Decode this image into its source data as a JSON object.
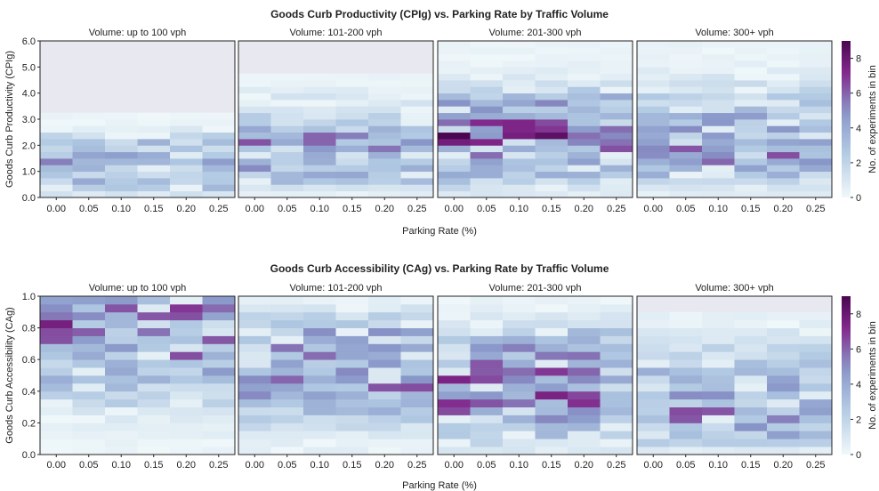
{
  "chart_data": [
    {
      "type": "heatmap",
      "title": "Goods Curb Productivity (CPIg) vs. Parking Rate by Traffic Volume",
      "xlabel": "Parking Rate (%)",
      "ylabel": "Goods Curb Productivity (CPIg)",
      "colorbar_label": "No. of experiments in bin",
      "colorbar_ticks": [
        "0",
        "2",
        "4",
        "6",
        "8"
      ],
      "colorbar_range": [
        0,
        9
      ],
      "x_ticks": [
        "0.00",
        "0.05",
        "0.10",
        "0.15",
        "0.20",
        "0.25"
      ],
      "y_ticks": [
        "0.0",
        "1.0",
        "2.0",
        "3.0",
        "4.0",
        "5.0",
        "6.0"
      ],
      "ylim": [
        0,
        6
      ],
      "grid": false,
      "panels": [
        {
          "title": "Volume: up to 100 vph",
          "bins": [
            [
              0.2,
              1
            ],
            [
              0.4,
              1
            ],
            [
              0.6,
              3
            ],
            [
              0.8,
              2
            ],
            [
              1.0,
              3
            ],
            [
              1.2,
              2
            ],
            [
              1.4,
              4
            ],
            [
              1.6,
              2
            ],
            [
              1.8,
              1
            ],
            [
              2.0,
              3
            ],
            [
              2.2,
              0.5
            ],
            [
              2.4,
              0.5
            ],
            [
              2.6,
              0.5
            ],
            [
              2.8,
              0.3
            ],
            [
              3.0,
              0.3
            ]
          ],
          "top": 3.3
        },
        {
          "title": "Volume: 101-200 vph",
          "bins": [
            [
              0.2,
              0.5
            ],
            [
              0.6,
              1
            ],
            [
              1.0,
              4
            ],
            [
              1.4,
              3
            ],
            [
              1.8,
              5
            ],
            [
              2.2,
              5
            ],
            [
              2.6,
              3
            ],
            [
              3.0,
              2
            ],
            [
              3.4,
              1
            ],
            [
              3.8,
              1
            ],
            [
              4.2,
              0.3
            ],
            [
              4.6,
              0.2
            ]
          ],
          "top": 4.8
        },
        {
          "title": "Volume: 201-300 vph",
          "bins": [
            [
              0.3,
              1
            ],
            [
              0.8,
              3
            ],
            [
              1.2,
              4
            ],
            [
              1.6,
              5
            ],
            [
              2.0,
              6
            ],
            [
              2.4,
              7
            ],
            [
              2.8,
              6
            ],
            [
              3.2,
              5
            ],
            [
              3.6,
              4
            ],
            [
              4.0,
              2
            ],
            [
              4.5,
              1
            ],
            [
              5.0,
              0.5
            ],
            [
              5.5,
              0.3
            ]
          ],
          "top": 6.0
        },
        {
          "title": "Volume: 300+ vph",
          "bins": [
            [
              0.5,
              1
            ],
            [
              1.0,
              3
            ],
            [
              1.5,
              6
            ],
            [
              2.0,
              5
            ],
            [
              2.5,
              4
            ],
            [
              3.0,
              4
            ],
            [
              3.5,
              3
            ],
            [
              4.0,
              2
            ],
            [
              4.5,
              1
            ],
            [
              5.0,
              0.5
            ],
            [
              5.5,
              0.3
            ]
          ],
          "top": 6.0
        }
      ]
    },
    {
      "type": "heatmap",
      "title": "Goods Curb Accessibility (CAg) vs. Parking Rate by Traffic Volume",
      "xlabel": "Parking Rate (%)",
      "ylabel": "Goods Curb Accessibility (CAg)",
      "colorbar_label": "No. of experiments in bin",
      "colorbar_ticks": [
        "0",
        "2",
        "4",
        "6",
        "8"
      ],
      "colorbar_range": [
        0,
        9
      ],
      "x_ticks": [
        "0.00",
        "0.05",
        "0.10",
        "0.15",
        "0.20",
        "0.25"
      ],
      "y_ticks": [
        "0.0",
        "0.2",
        "0.4",
        "0.6",
        "0.8",
        "1.0"
      ],
      "ylim": [
        0,
        1
      ],
      "grid": false,
      "panels": [
        {
          "title": "Volume: up to 100 vph",
          "bins": [
            [
              0.05,
              0.3
            ],
            [
              0.15,
              0.5
            ],
            [
              0.25,
              0.8
            ],
            [
              0.35,
              2
            ],
            [
              0.45,
              3
            ],
            [
              0.55,
              4
            ],
            [
              0.65,
              5
            ],
            [
              0.75,
              5
            ],
            [
              0.85,
              6
            ],
            [
              0.95,
              6
            ]
          ],
          "top": 1.0
        },
        {
          "title": "Volume: 101-200 vph",
          "bins": [
            [
              0.05,
              0.5
            ],
            [
              0.15,
              1
            ],
            [
              0.25,
              3
            ],
            [
              0.35,
              4
            ],
            [
              0.45,
              5
            ],
            [
              0.55,
              5
            ],
            [
              0.65,
              5
            ],
            [
              0.75,
              4
            ],
            [
              0.85,
              2
            ],
            [
              0.95,
              0.5
            ]
          ],
          "top": 1.0
        },
        {
          "title": "Volume: 201-300 vph",
          "bins": [
            [
              0.05,
              1
            ],
            [
              0.15,
              3
            ],
            [
              0.25,
              5
            ],
            [
              0.35,
              6
            ],
            [
              0.45,
              6
            ],
            [
              0.55,
              6
            ],
            [
              0.65,
              5
            ],
            [
              0.75,
              3
            ],
            [
              0.85,
              1
            ],
            [
              0.95,
              0.5
            ]
          ],
          "top": 1.0
        },
        {
          "title": "Volume: 300+ vph",
          "bins": [
            [
              0.05,
              1
            ],
            [
              0.15,
              4
            ],
            [
              0.25,
              5
            ],
            [
              0.35,
              4
            ],
            [
              0.45,
              4
            ],
            [
              0.55,
              3
            ],
            [
              0.65,
              2
            ],
            [
              0.75,
              1
            ],
            [
              0.85,
              0.5
            ]
          ],
          "top": 0.92
        }
      ]
    }
  ]
}
